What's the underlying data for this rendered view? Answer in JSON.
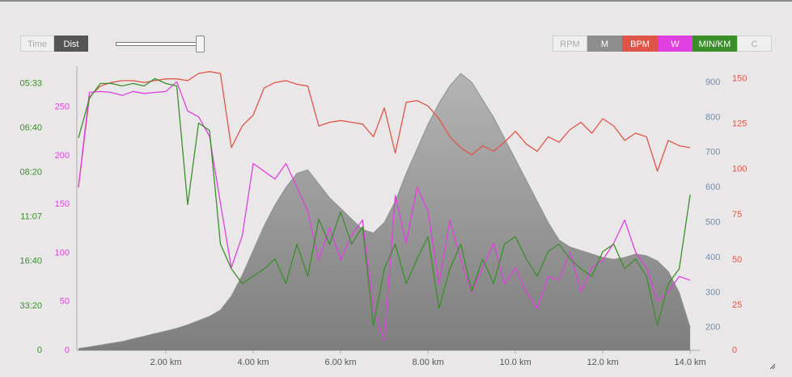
{
  "toolbar": {
    "modes": [
      "Time",
      "Dist"
    ],
    "buttons": [
      "RPM",
      "M",
      "BPM",
      "W",
      "MIN/KM",
      "C"
    ]
  },
  "chart_data": {
    "type": "line",
    "x": [
      0,
      0.25,
      0.5,
      0.75,
      1,
      1.25,
      1.5,
      1.75,
      2,
      2.25,
      2.5,
      2.75,
      3,
      3.25,
      3.5,
      3.75,
      4,
      4.25,
      4.5,
      4.75,
      5,
      5.25,
      5.5,
      5.75,
      6,
      6.25,
      6.5,
      6.75,
      7,
      7.25,
      7.5,
      7.75,
      8,
      8.25,
      8.5,
      8.75,
      9,
      9.25,
      9.5,
      9.75,
      10,
      10.25,
      10.5,
      10.75,
      11,
      11.25,
      11.5,
      11.75,
      12,
      12.25,
      12.5,
      12.75,
      13,
      13.25,
      13.5,
      13.75,
      14
    ],
    "xlim": [
      0,
      14.22
    ],
    "xticks": [
      {
        "value": 2,
        "label": "2.00 km"
      },
      {
        "value": 4,
        "label": "4.00 km"
      },
      {
        "value": 6,
        "label": "6.00 km"
      },
      {
        "value": 8,
        "label": "8.00 km"
      },
      {
        "value": 10,
        "label": "10.0 km"
      },
      {
        "value": 12,
        "label": "12.0 km"
      },
      {
        "value": 14,
        "label": "14.0 km"
      }
    ],
    "ylim": [
      0,
      11.5
    ],
    "yticks": [
      0,
      {
        "value": 1.8,
        "label": "33:20"
      },
      {
        "value": 3.6,
        "label": "16:40"
      },
      {
        "value": 5.4,
        "label": "11:07"
      },
      {
        "value": 7.2,
        "label": "08:20"
      },
      {
        "value": 9,
        "label": "06:40"
      },
      {
        "value": 10.8,
        "label": "05:33"
      }
    ],
    "y2lim": [
      0,
      292
    ],
    "y2ticks": [
      0,
      50,
      100,
      150,
      200,
      250
    ],
    "y3lim": [
      135,
      946
    ],
    "y3ticks": [
      200,
      300,
      400,
      500,
      600,
      700,
      800,
      900
    ],
    "y3_color": "#6f8fb3",
    "y4lim": [
      0,
      157
    ],
    "y4ticks": [
      0,
      25,
      50,
      75,
      100,
      125,
      150
    ],
    "series": [
      {
        "name": "M",
        "kind": "area",
        "axis": "y3",
        "color": "#8e8e8e",
        "values": [
          140,
          145,
          150,
          155,
          160,
          168,
          175,
          183,
          190,
          198,
          208,
          220,
          232,
          250,
          290,
          350,
          420,
          490,
          550,
          600,
          640,
          650,
          610,
          570,
          540,
          510,
          480,
          470,
          500,
          560,
          640,
          710,
          780,
          840,
          890,
          925,
          900,
          850,
          800,
          740,
          680,
          620,
          560,
          500,
          450,
          430,
          420,
          410,
          400,
          395,
          400,
          410,
          405,
          390,
          360,
          300,
          200
        ]
      },
      {
        "name": "BPM",
        "axis": "y4",
        "color": "#e0554a",
        "values": [
          90,
          140,
          146,
          148,
          149,
          149,
          148,
          149,
          150,
          150,
          149,
          153,
          154,
          153,
          112,
          124,
          130,
          145,
          148,
          149,
          147,
          146,
          124,
          126,
          127,
          126,
          125,
          118,
          134,
          109,
          137,
          138,
          135,
          128,
          118,
          112,
          108,
          113,
          110,
          115,
          121,
          114,
          110,
          118,
          115,
          122,
          126,
          120,
          128,
          124,
          116,
          120,
          118,
          99,
          116,
          113,
          112
        ]
      },
      {
        "name": "W",
        "axis": "y2",
        "color": "#e040e0",
        "values": [
          168,
          265,
          266,
          265,
          262,
          266,
          264,
          265,
          266,
          276,
          246,
          240,
          220,
          151,
          85,
          118,
          192,
          184,
          176,
          192,
          168,
          143,
          93,
          126,
          93,
          118,
          134,
          43,
          10,
          159,
          110,
          168,
          143,
          68,
          134,
          93,
          60,
          85,
          110,
          68,
          85,
          60,
          43,
          76,
          72,
          101,
          60,
          85,
          93,
          110,
          134,
          101,
          85,
          51,
          60,
          76,
          72
        ]
      },
      {
        "name": "MIN/KM",
        "axis": "y",
        "color": "#3a8f2a",
        "values": [
          8.6,
          10.2,
          10.8,
          10.8,
          10.7,
          10.8,
          10.7,
          11.0,
          10.8,
          10.7,
          5.9,
          9.2,
          8.9,
          4.3,
          3.3,
          2.7,
          3.0,
          3.3,
          3.7,
          2.7,
          4.3,
          3.0,
          5.3,
          4.3,
          5.6,
          4.3,
          5.0,
          1.0,
          3.3,
          4.3,
          2.7,
          3.7,
          4.6,
          1.7,
          3.3,
          4.3,
          2.4,
          3.7,
          2.7,
          4.3,
          4.6,
          3.7,
          3.0,
          4.0,
          4.3,
          3.7,
          3.3,
          3.0,
          4.0,
          4.3,
          3.3,
          3.7,
          3.0,
          1.0,
          2.7,
          3.3,
          6.3
        ]
      }
    ]
  }
}
